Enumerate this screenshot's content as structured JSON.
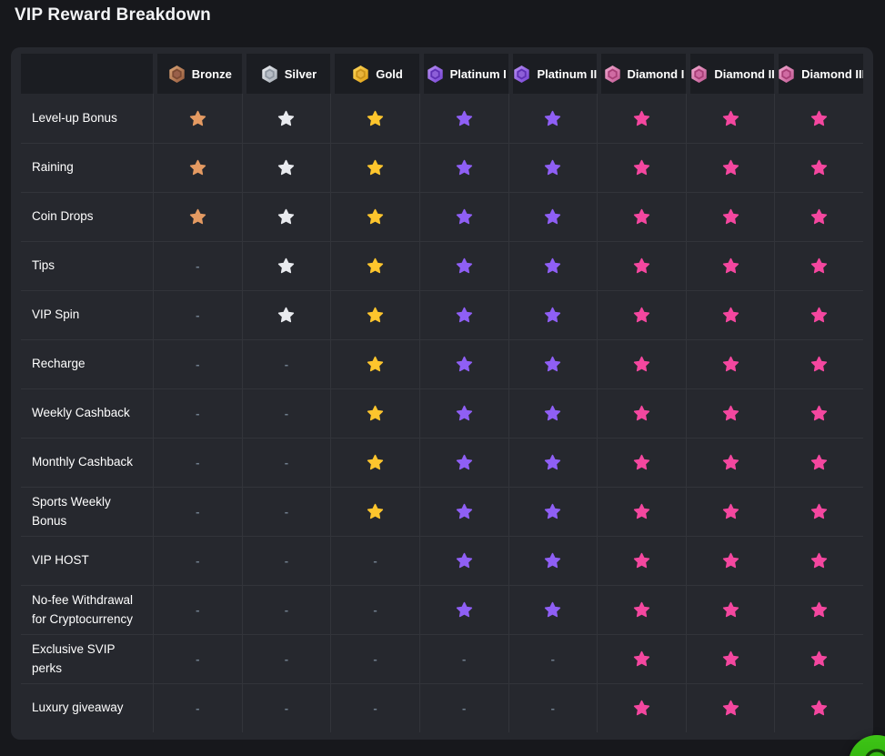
{
  "page": {
    "title": "VIP Reward Breakdown"
  },
  "colors": {
    "page_bg": "#17181c",
    "card_bg": "#26282e",
    "header_cell_bg": "#1b1d22",
    "separator": "rgba(255,255,255,0.06)",
    "dash": "#6f7d8c",
    "chat_green": "#31b50d"
  },
  "table": {
    "empty_marker": "-",
    "tiers": [
      {
        "label": "Bronze",
        "icon": "bronze-badge-icon",
        "star": "#e49a62",
        "badge": {
          "light": "#dda778",
          "dark": "#93573a",
          "inner": "#7c4a33",
          "center": "#99604a"
        }
      },
      {
        "label": "Silver",
        "icon": "silver-badge-icon",
        "star": "#e9ebef",
        "badge": {
          "light": "#f0f2f5",
          "dark": "#a0a7b1",
          "inner": "#8e96a1",
          "center": "#b7bdc6"
        }
      },
      {
        "label": "Gold",
        "icon": "gold-badge-icon",
        "star": "#fdc52d",
        "badge": {
          "light": "#ffd95c",
          "dark": "#dd9c12",
          "inner": "#c9921a",
          "center": "#e8b33a"
        }
      },
      {
        "label": "Platinum I",
        "icon": "platinum-1-badge-icon",
        "star": "#8f5ff5",
        "badge": {
          "light": "#b991f4",
          "dark": "#7440d2",
          "inner": "#5f30b4",
          "center": "#8d5fd8"
        }
      },
      {
        "label": "Platinum II",
        "icon": "platinum-2-badge-icon",
        "star": "#8f5ff5",
        "badge": {
          "light": "#b991f4",
          "dark": "#7440d2",
          "inner": "#5f30b4",
          "center": "#8d5fd8"
        }
      },
      {
        "label": "Diamond I",
        "icon": "diamond-1-badge-icon",
        "star": "#f4479f",
        "badge": {
          "light": "#f3abd1",
          "dark": "#bf5490",
          "inner": "#a83f77",
          "center": "#d06ba3"
        }
      },
      {
        "label": "Diamond II",
        "icon": "diamond-2-badge-icon",
        "star": "#f4479f",
        "badge": {
          "light": "#f3abd1",
          "dark": "#bf5490",
          "inner": "#a83f77",
          "center": "#d06ba3"
        }
      },
      {
        "label": "Diamond III",
        "icon": "diamond-3-badge-icon",
        "star": "#f4479f",
        "badge": {
          "light": "#f3abd1",
          "dark": "#bf5490",
          "inner": "#a83f77",
          "center": "#d06ba3"
        }
      }
    ],
    "rows": [
      {
        "label": "Level-up Bonus",
        "cells": [
          1,
          1,
          1,
          1,
          1,
          1,
          1,
          1
        ]
      },
      {
        "label": "Raining",
        "cells": [
          1,
          1,
          1,
          1,
          1,
          1,
          1,
          1
        ]
      },
      {
        "label": "Coin Drops",
        "cells": [
          1,
          1,
          1,
          1,
          1,
          1,
          1,
          1
        ]
      },
      {
        "label": "Tips",
        "cells": [
          0,
          1,
          1,
          1,
          1,
          1,
          1,
          1
        ]
      },
      {
        "label": "VIP Spin",
        "cells": [
          0,
          1,
          1,
          1,
          1,
          1,
          1,
          1
        ]
      },
      {
        "label": "Recharge",
        "cells": [
          0,
          0,
          1,
          1,
          1,
          1,
          1,
          1
        ]
      },
      {
        "label": "Weekly Cashback",
        "cells": [
          0,
          0,
          1,
          1,
          1,
          1,
          1,
          1
        ]
      },
      {
        "label": "Monthly Cashback",
        "cells": [
          0,
          0,
          1,
          1,
          1,
          1,
          1,
          1
        ]
      },
      {
        "label": "Sports Weekly Bonus",
        "cells": [
          0,
          0,
          1,
          1,
          1,
          1,
          1,
          1
        ]
      },
      {
        "label": "VIP HOST",
        "cells": [
          0,
          0,
          0,
          1,
          1,
          1,
          1,
          1
        ]
      },
      {
        "label": "No-fee Withdrawal for Cryptocurrency",
        "cells": [
          0,
          0,
          0,
          1,
          1,
          1,
          1,
          1
        ]
      },
      {
        "label": "Exclusive SVIP perks",
        "cells": [
          0,
          0,
          0,
          0,
          0,
          1,
          1,
          1
        ]
      },
      {
        "label": "Luxury giveaway",
        "cells": [
          0,
          0,
          0,
          0,
          0,
          1,
          1,
          1
        ]
      }
    ]
  },
  "chat": {
    "icon": "chat-smiley-icon"
  }
}
